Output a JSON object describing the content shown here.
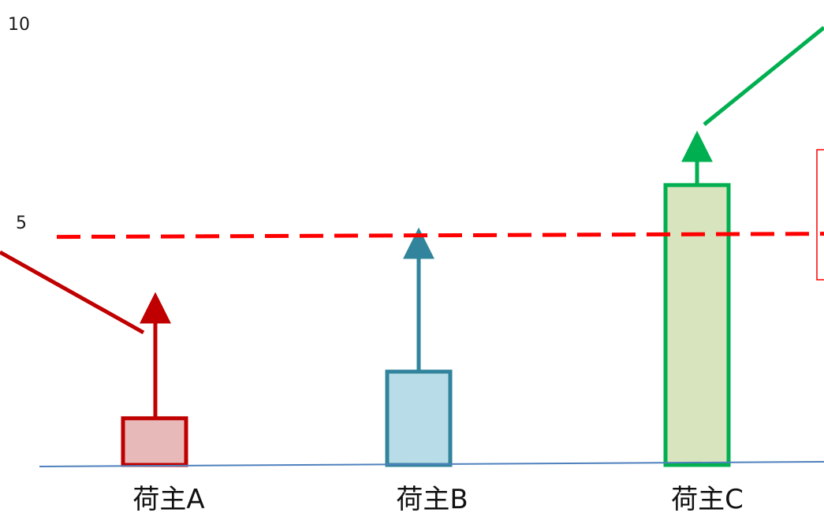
{
  "chart_data": {
    "type": "bar",
    "categories": [
      "荷主A",
      "荷主B",
      "荷主C"
    ],
    "values": [
      1.3,
      2.6,
      7.8
    ],
    "arrow_targets": [
      4.6,
      6.4,
      9.1
    ],
    "threshold": 6.4,
    "y_ticks": [
      "10",
      "5"
    ],
    "ylim": [
      0,
      12.3
    ],
    "grid": false,
    "colors": {
      "bars_fill": [
        "#e8b9b9",
        "#b9dde8",
        "#d8e4bd"
      ],
      "bars_stroke": [
        "#c00000",
        "#31849b",
        "#00b050"
      ],
      "threshold": "#ff0000",
      "baseline": "#4f81bd"
    }
  }
}
